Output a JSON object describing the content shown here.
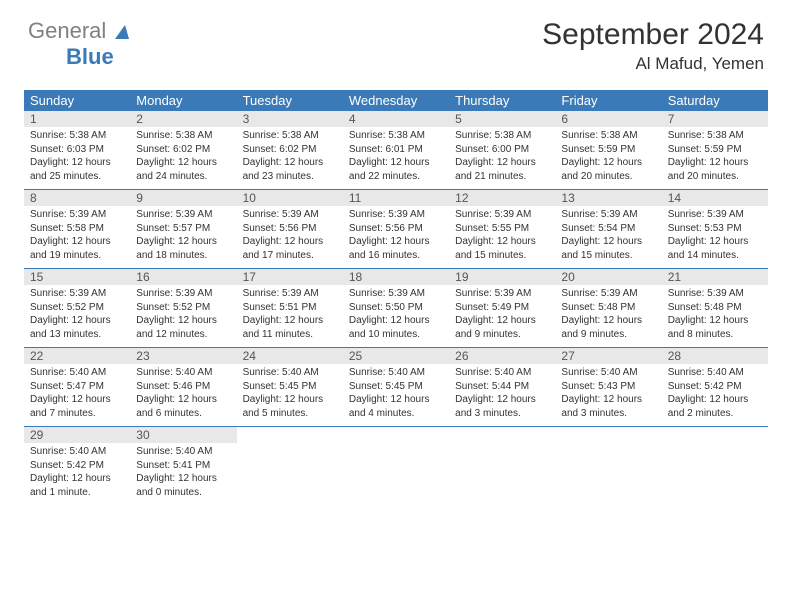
{
  "brand": {
    "line1": "General",
    "line2": "Blue"
  },
  "title": "September 2024",
  "location": "Al Mafud, Yemen",
  "colors": {
    "header_bg": "#3a7ab8",
    "day_number_bg": "#e8e8e8",
    "text": "#333333",
    "brand_gray": "#808080",
    "brand_blue": "#3a7ab8",
    "background": "#ffffff"
  },
  "dayNames": [
    "Sunday",
    "Monday",
    "Tuesday",
    "Wednesday",
    "Thursday",
    "Friday",
    "Saturday"
  ],
  "weeks": [
    [
      {
        "n": "1",
        "sunrise": "Sunrise: 5:38 AM",
        "sunset": "Sunset: 6:03 PM",
        "day": "Daylight: 12 hours and 25 minutes."
      },
      {
        "n": "2",
        "sunrise": "Sunrise: 5:38 AM",
        "sunset": "Sunset: 6:02 PM",
        "day": "Daylight: 12 hours and 24 minutes."
      },
      {
        "n": "3",
        "sunrise": "Sunrise: 5:38 AM",
        "sunset": "Sunset: 6:02 PM",
        "day": "Daylight: 12 hours and 23 minutes."
      },
      {
        "n": "4",
        "sunrise": "Sunrise: 5:38 AM",
        "sunset": "Sunset: 6:01 PM",
        "day": "Daylight: 12 hours and 22 minutes."
      },
      {
        "n": "5",
        "sunrise": "Sunrise: 5:38 AM",
        "sunset": "Sunset: 6:00 PM",
        "day": "Daylight: 12 hours and 21 minutes."
      },
      {
        "n": "6",
        "sunrise": "Sunrise: 5:38 AM",
        "sunset": "Sunset: 5:59 PM",
        "day": "Daylight: 12 hours and 20 minutes."
      },
      {
        "n": "7",
        "sunrise": "Sunrise: 5:38 AM",
        "sunset": "Sunset: 5:59 PM",
        "day": "Daylight: 12 hours and 20 minutes."
      }
    ],
    [
      {
        "n": "8",
        "sunrise": "Sunrise: 5:39 AM",
        "sunset": "Sunset: 5:58 PM",
        "day": "Daylight: 12 hours and 19 minutes."
      },
      {
        "n": "9",
        "sunrise": "Sunrise: 5:39 AM",
        "sunset": "Sunset: 5:57 PM",
        "day": "Daylight: 12 hours and 18 minutes."
      },
      {
        "n": "10",
        "sunrise": "Sunrise: 5:39 AM",
        "sunset": "Sunset: 5:56 PM",
        "day": "Daylight: 12 hours and 17 minutes."
      },
      {
        "n": "11",
        "sunrise": "Sunrise: 5:39 AM",
        "sunset": "Sunset: 5:56 PM",
        "day": "Daylight: 12 hours and 16 minutes."
      },
      {
        "n": "12",
        "sunrise": "Sunrise: 5:39 AM",
        "sunset": "Sunset: 5:55 PM",
        "day": "Daylight: 12 hours and 15 minutes."
      },
      {
        "n": "13",
        "sunrise": "Sunrise: 5:39 AM",
        "sunset": "Sunset: 5:54 PM",
        "day": "Daylight: 12 hours and 15 minutes."
      },
      {
        "n": "14",
        "sunrise": "Sunrise: 5:39 AM",
        "sunset": "Sunset: 5:53 PM",
        "day": "Daylight: 12 hours and 14 minutes."
      }
    ],
    [
      {
        "n": "15",
        "sunrise": "Sunrise: 5:39 AM",
        "sunset": "Sunset: 5:52 PM",
        "day": "Daylight: 12 hours and 13 minutes."
      },
      {
        "n": "16",
        "sunrise": "Sunrise: 5:39 AM",
        "sunset": "Sunset: 5:52 PM",
        "day": "Daylight: 12 hours and 12 minutes."
      },
      {
        "n": "17",
        "sunrise": "Sunrise: 5:39 AM",
        "sunset": "Sunset: 5:51 PM",
        "day": "Daylight: 12 hours and 11 minutes."
      },
      {
        "n": "18",
        "sunrise": "Sunrise: 5:39 AM",
        "sunset": "Sunset: 5:50 PM",
        "day": "Daylight: 12 hours and 10 minutes."
      },
      {
        "n": "19",
        "sunrise": "Sunrise: 5:39 AM",
        "sunset": "Sunset: 5:49 PM",
        "day": "Daylight: 12 hours and 9 minutes."
      },
      {
        "n": "20",
        "sunrise": "Sunrise: 5:39 AM",
        "sunset": "Sunset: 5:48 PM",
        "day": "Daylight: 12 hours and 9 minutes."
      },
      {
        "n": "21",
        "sunrise": "Sunrise: 5:39 AM",
        "sunset": "Sunset: 5:48 PM",
        "day": "Daylight: 12 hours and 8 minutes."
      }
    ],
    [
      {
        "n": "22",
        "sunrise": "Sunrise: 5:40 AM",
        "sunset": "Sunset: 5:47 PM",
        "day": "Daylight: 12 hours and 7 minutes."
      },
      {
        "n": "23",
        "sunrise": "Sunrise: 5:40 AM",
        "sunset": "Sunset: 5:46 PM",
        "day": "Daylight: 12 hours and 6 minutes."
      },
      {
        "n": "24",
        "sunrise": "Sunrise: 5:40 AM",
        "sunset": "Sunset: 5:45 PM",
        "day": "Daylight: 12 hours and 5 minutes."
      },
      {
        "n": "25",
        "sunrise": "Sunrise: 5:40 AM",
        "sunset": "Sunset: 5:45 PM",
        "day": "Daylight: 12 hours and 4 minutes."
      },
      {
        "n": "26",
        "sunrise": "Sunrise: 5:40 AM",
        "sunset": "Sunset: 5:44 PM",
        "day": "Daylight: 12 hours and 3 minutes."
      },
      {
        "n": "27",
        "sunrise": "Sunrise: 5:40 AM",
        "sunset": "Sunset: 5:43 PM",
        "day": "Daylight: 12 hours and 3 minutes."
      },
      {
        "n": "28",
        "sunrise": "Sunrise: 5:40 AM",
        "sunset": "Sunset: 5:42 PM",
        "day": "Daylight: 12 hours and 2 minutes."
      }
    ],
    [
      {
        "n": "29",
        "sunrise": "Sunrise: 5:40 AM",
        "sunset": "Sunset: 5:42 PM",
        "day": "Daylight: 12 hours and 1 minute."
      },
      {
        "n": "30",
        "sunrise": "Sunrise: 5:40 AM",
        "sunset": "Sunset: 5:41 PM",
        "day": "Daylight: 12 hours and 0 minutes."
      },
      null,
      null,
      null,
      null,
      null
    ]
  ]
}
